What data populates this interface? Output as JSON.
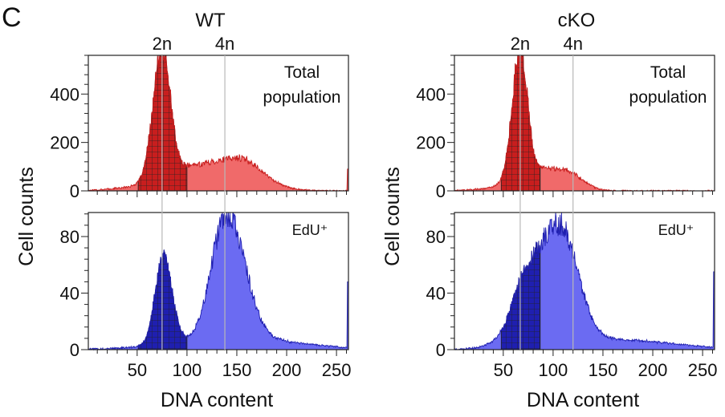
{
  "figure": {
    "panel_letter": "C",
    "ylabel": "Cell counts",
    "xlabel": "DNA content"
  },
  "chart_data": [
    {
      "type": "area",
      "title": "WT",
      "ploidy_labels": [
        "2n",
        "4n"
      ],
      "ploidy_x": [
        75,
        138
      ],
      "subpanels": [
        {
          "label": "Total population",
          "label_lines": [
            "Total",
            "population"
          ],
          "color": "#f06a6a",
          "gated_color": "#c81e1e",
          "yticks": [
            0,
            200,
            400
          ],
          "ylim": [
            0,
            560
          ],
          "xlim": [
            1,
            262
          ],
          "gate": [
            51,
            100
          ],
          "peaks": [
            {
              "x": 75,
              "h": 530,
              "wl": 9,
              "wr": 8
            },
            {
              "x": 86,
              "h": 25,
              "wl": 8,
              "wr": 25
            },
            {
              "x": 150,
              "h": 120,
              "wl": 55,
              "wr": 22
            },
            {
              "x": 168,
              "h": 20,
              "wl": 25,
              "wr": 25
            }
          ],
          "end_spike": 90
        },
        {
          "label": "EdU⁺",
          "label_lines": [
            "EdU⁺"
          ],
          "color": "#6b6bf2",
          "gated_color": "#1f1fb0",
          "yticks": [
            0,
            40,
            80
          ],
          "ylim": [
            0,
            97
          ],
          "xlim": [
            1,
            262
          ],
          "gate": [
            51,
            100
          ],
          "peaks": [
            {
              "x": 76,
              "h": 62,
              "wl": 8,
              "wr": 9
            },
            {
              "x": 140,
              "h": 88,
              "wl": 15,
              "wr": 18
            },
            {
              "x": 150,
              "h": 8,
              "wl": 60,
              "wr": 60
            }
          ],
          "end_spike": 48
        }
      ],
      "xticks": [
        50,
        100,
        150,
        200,
        250
      ]
    },
    {
      "type": "area",
      "title": "cKO",
      "ploidy_labels": [
        "2n",
        "4n"
      ],
      "ploidy_x": [
        67,
        120
      ],
      "subpanels": [
        {
          "label": "Total population",
          "label_lines": [
            "Total",
            "population"
          ],
          "color": "#f06a6a",
          "gated_color": "#c81e1e",
          "yticks": [
            0,
            200,
            400
          ],
          "ylim": [
            0,
            560
          ],
          "xlim": [
            1,
            262
          ],
          "gate": [
            48,
            87
          ],
          "peaks": [
            {
              "x": 67,
              "h": 535,
              "wl": 8,
              "wr": 7
            },
            {
              "x": 80,
              "h": 25,
              "wl": 8,
              "wr": 18
            },
            {
              "x": 112,
              "h": 82,
              "wl": 40,
              "wr": 16
            }
          ],
          "end_spike": 0
        },
        {
          "label": "EdU⁺",
          "label_lines": [
            "EdU⁺"
          ],
          "color": "#6b6bf2",
          "gated_color": "#1f1fb0",
          "yticks": [
            0,
            40,
            80
          ],
          "ylim": [
            0,
            97
          ],
          "xlim": [
            1,
            262
          ],
          "gate": [
            48,
            87
          ],
          "peaks": [
            {
              "x": 106,
              "h": 85,
              "wl": 28,
              "wr": 18
            },
            {
              "x": 68,
              "h": 15,
              "wl": 10,
              "wr": 12
            },
            {
              "x": 160,
              "h": 7,
              "wl": 60,
              "wr": 60
            }
          ],
          "end_spike": 55
        }
      ],
      "xticks": [
        50,
        100,
        150,
        200,
        250
      ]
    }
  ]
}
